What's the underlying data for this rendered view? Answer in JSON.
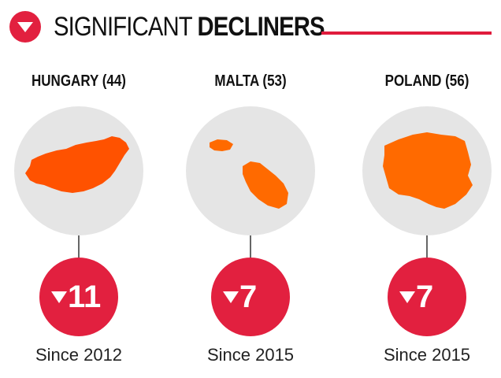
{
  "header": {
    "icon": "down-triangle-circle-icon",
    "title_light": "SIGNIFICANT",
    "title_bold": "DECLINERS",
    "accent_color": "#e01b3c"
  },
  "countries": [
    {
      "label": "HUNGARY (44)",
      "map_icon": "hungary-map-icon",
      "map_color": "#ff5200",
      "change": "11",
      "change_icon": "down-triangle-icon",
      "since": "Since 2012"
    },
    {
      "label": "MALTA (53)",
      "map_icon": "malta-map-icon",
      "map_color": "#ff6a00",
      "change": "7",
      "change_icon": "down-triangle-icon",
      "since": "Since 2015"
    },
    {
      "label": "POLAND (56)",
      "map_icon": "poland-map-icon",
      "map_color": "#ff6a00",
      "change": "7",
      "change_icon": "down-triangle-icon",
      "since": "Since 2015"
    }
  ],
  "colors": {
    "badge": "#e2203f",
    "circle": "#e5e5e5"
  }
}
